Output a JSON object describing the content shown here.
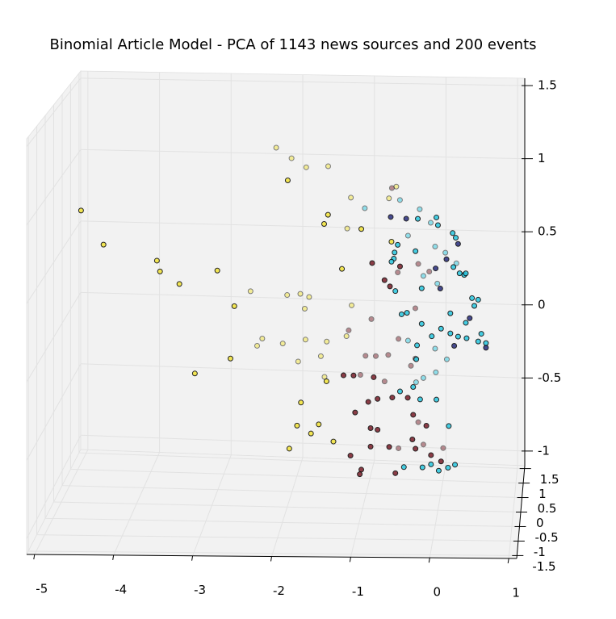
{
  "chart_data": {
    "type": "scatter3d",
    "title": "Binomial Article Model - PCA of 1143 news sources and 200 events",
    "xlim": [
      -5.1,
      1.1
    ],
    "xticks": [
      -5,
      -4,
      -3,
      -2,
      -1,
      0,
      1
    ],
    "ylim": [
      -1.6,
      1.6
    ],
    "yticks": [
      -1.5,
      -1.0,
      -0.5,
      0.0,
      0.5,
      1.0,
      1.5
    ],
    "zlim": [
      -1.1,
      1.55
    ],
    "zticks": [
      -1.0,
      -0.5,
      0.0,
      0.5,
      1.0,
      1.5
    ],
    "grid": true,
    "depthshade": true,
    "series": [
      {
        "color": "#f2e43a",
        "x": [
          -2.27,
          -2.06,
          -1.86,
          -1.56,
          -1.25,
          -1.3,
          -2.62,
          -2.12,
          -1.94,
          -1.82,
          -1.88,
          -1.24,
          -2.46,
          -2.18,
          -1.87,
          -1.58,
          -2.53,
          -1.97,
          -1.66,
          -1.31,
          -1.61,
          -0.73,
          -0.63
        ],
        "y": [
          0.9,
          0.9,
          0.9,
          0.9,
          0.9,
          0.9,
          0.9,
          0.9,
          0.9,
          0.9,
          0.9,
          0.9,
          0.9,
          0.9,
          0.9,
          0.9,
          0.9,
          0.9,
          0.9,
          0.9,
          0.9,
          0.9,
          0.9
        ],
        "z": [
          1.15,
          1.08,
          1.02,
          1.03,
          0.82,
          0.61,
          0.17,
          0.15,
          0.16,
          0.14,
          0.06,
          0.09,
          -0.15,
          -0.18,
          -0.15,
          -0.16,
          -0.2,
          -0.3,
          -0.26,
          -0.12,
          -0.4,
          0.82,
          0.9
        ]
      },
      {
        "color": "#7a1f2a",
        "x": [
          -1.28,
          -0.97,
          -0.91,
          -0.6,
          -1.05,
          -0.74,
          -0.43,
          -1.12,
          -0.79,
          -0.37,
          -0.33,
          -0.18,
          -0.37,
          -0.61,
          -0.69,
          0.01,
          -0.33,
          -0.26,
          -0.6
        ],
        "y": [
          0.9,
          0.9,
          0.9,
          0.9,
          0.9,
          0.9,
          0.9,
          0.9,
          0.9,
          0.9,
          0.9,
          0.9,
          0.9,
          0.9,
          0.9,
          0.9,
          0.9,
          0.9,
          0.9
        ],
        "z": [
          -0.08,
          0.0,
          -0.25,
          -0.13,
          -0.25,
          -0.24,
          -0.31,
          -0.38,
          -0.42,
          -0.26,
          0.38,
          0.33,
          0.08,
          0.32,
          0.89,
          -0.86,
          -0.69,
          -0.84,
          -0.87
        ]
      },
      {
        "color": "#29c8e0",
        "x": [
          -1.06,
          -0.58,
          -0.31,
          -0.16,
          -0.1,
          0.04,
          0.19,
          -0.47,
          -0.26,
          -0.07,
          0.06,
          -0.09,
          -0.36,
          -0.26,
          -0.1,
          -0.47
        ],
        "y": [
          0.9,
          0.9,
          0.9,
          0.9,
          0.9,
          0.9,
          0.9,
          0.9,
          0.9,
          0.9,
          0.9,
          0.9,
          0.9,
          0.9,
          0.9,
          0.9
        ],
        "z": [
          0.75,
          0.81,
          0.75,
          0.66,
          0.5,
          0.46,
          0.39,
          0.57,
          0.3,
          0.25,
          -0.26,
          -0.35,
          -0.42,
          -0.39,
          -0.19,
          -0.14
        ]
      },
      {
        "color": "#f2e43a",
        "x": [
          -4.55,
          -4.26,
          -3.57,
          -3.53,
          -3.28,
          -2.79,
          -2.57,
          -3.08,
          -2.62,
          -1.88,
          -1.41,
          -1.36,
          -1.18,
          -0.93,
          -1.71,
          -1.76,
          -1.58,
          -1.48,
          -1.86,
          -1.29,
          -1.38,
          -0.54
        ],
        "y": [
          -0.9,
          -0.9,
          -0.9,
          -0.9,
          -0.9,
          -0.9,
          -0.9,
          -0.9,
          -0.9,
          -0.9,
          -0.9,
          -0.9,
          -0.9,
          -0.9,
          -0.9,
          -0.9,
          -0.9,
          -0.9,
          -0.9,
          -0.9,
          -0.9,
          -0.9
        ],
        "z": [
          0.99,
          0.77,
          0.67,
          0.6,
          0.52,
          0.61,
          0.38,
          -0.06,
          0.04,
          1.2,
          0.92,
          0.98,
          0.63,
          0.89,
          -0.24,
          -0.39,
          -0.44,
          -0.38,
          -0.54,
          -0.49,
          -0.1,
          0.81
        ]
      },
      {
        "color": "#7a1f2a",
        "x": [
          -0.79,
          -0.63,
          -0.56,
          -0.43,
          -1.03,
          -1.16,
          -0.77,
          -0.72,
          -0.84,
          -1.01,
          -0.81,
          -1.07,
          -0.93,
          -0.95,
          -0.81,
          -0.57,
          -0.49,
          -0.27,
          -0.23,
          -0.09,
          -0.03,
          0.1,
          -0.26,
          -0.53,
          -0.33,
          -0.72
        ],
        "y": [
          -0.9,
          -0.9,
          -0.9,
          -0.9,
          -0.9,
          -0.9,
          -0.9,
          -0.9,
          -0.9,
          -0.9,
          -0.9,
          -0.9,
          -0.9,
          -0.9,
          -0.9,
          -0.9,
          -0.9,
          -0.9,
          -0.9,
          -0.9,
          -0.9,
          -0.9,
          -0.9,
          -0.9,
          -0.9,
          -0.9
        ],
        "z": [
          0.67,
          0.56,
          0.52,
          0.65,
          -0.06,
          -0.06,
          -0.07,
          -0.21,
          -0.23,
          -0.3,
          -0.4,
          -0.58,
          -0.67,
          -0.7,
          -0.52,
          -0.52,
          -0.69,
          -0.47,
          -0.53,
          -0.38,
          -0.57,
          -0.61,
          -0.31,
          -0.2,
          -0.2,
          -0.41
        ]
      },
      {
        "color": "#2b2f7e",
        "x": [
          -0.55,
          -0.35,
          0.03,
          0.17,
          0.32,
          0.47,
          0.68,
          0.27,
          0.09
        ],
        "y": [
          -0.9,
          -0.9,
          -0.9,
          -0.9,
          -0.9,
          -0.9,
          -0.9,
          -0.9,
          -0.9
        ],
        "z": [
          0.97,
          0.96,
          0.64,
          0.7,
          0.8,
          0.32,
          0.13,
          0.14,
          0.51
        ]
      },
      {
        "color": "#29c8e0",
        "x": [
          -0.51,
          -0.54,
          -0.5,
          -0.46,
          -0.23,
          -0.2,
          0.06,
          0.04,
          0.25,
          0.29,
          0.4,
          0.42,
          0.34,
          -0.15,
          -0.49,
          -0.34,
          -0.41,
          -0.15,
          -0.21,
          -0.22,
          -0.02,
          0.1,
          0.22,
          0.32,
          0.43,
          0.58,
          0.68,
          0.62,
          0.42,
          0.5,
          0.58,
          0.22,
          -0.43,
          -0.26,
          -0.17,
          0.04,
          0.2,
          0.28,
          -0.14,
          0.07,
          -0.03,
          -0.38,
          0.19,
          0.53,
          0.26
        ],
        "y": [
          -0.9,
          -0.9,
          -0.9,
          -0.9,
          -0.9,
          -0.9,
          -0.9,
          -0.9,
          -0.9,
          -0.9,
          -0.9,
          -0.9,
          -0.9,
          -0.9,
          -0.9,
          -0.9,
          -0.9,
          -0.9,
          -0.9,
          -0.9,
          -0.9,
          -0.9,
          -0.9,
          -0.9,
          -0.9,
          -0.9,
          -0.9,
          -0.9,
          -0.9,
          -0.9,
          -0.9,
          -0.9,
          -0.9,
          -0.9,
          -0.9,
          -0.9,
          -0.9,
          -0.9,
          -0.9,
          -0.9,
          -0.9,
          -0.9,
          -0.9,
          -0.9,
          -0.9
        ],
        "z": [
          0.7,
          0.68,
          0.74,
          0.79,
          0.75,
          0.96,
          0.92,
          0.97,
          0.87,
          0.84,
          0.6,
          0.61,
          0.61,
          0.51,
          0.49,
          0.35,
          0.34,
          0.28,
          0.14,
          0.05,
          0.2,
          0.25,
          0.22,
          0.2,
          0.19,
          0.17,
          0.16,
          0.22,
          0.29,
          0.45,
          0.44,
          0.35,
          -0.16,
          -0.13,
          -0.21,
          -0.21,
          -0.38,
          -0.63,
          -0.65,
          -0.67,
          -0.63,
          -0.65,
          -0.65,
          0.4,
          0.65
        ]
      }
    ]
  }
}
